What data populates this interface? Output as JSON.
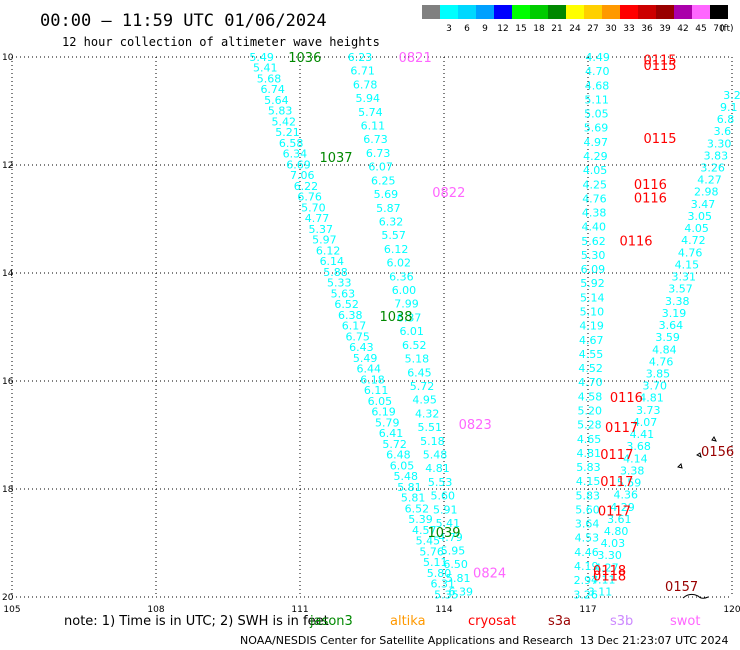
{
  "header": {
    "title": "00:00 – 11:59 UTC 01/06/2024",
    "subtitle": "12 hour collection of altimeter wave heights"
  },
  "colorbar": {
    "unit": "(ft)",
    "bins": [
      {
        "label": "",
        "color": "#808080"
      },
      {
        "label": "3",
        "color": "#00ffff"
      },
      {
        "label": "6",
        "color": "#00d8ff"
      },
      {
        "label": "9",
        "color": "#00a0ff"
      },
      {
        "label": "12",
        "color": "#0000ff"
      },
      {
        "label": "15",
        "color": "#00ff00"
      },
      {
        "label": "18",
        "color": "#00cc00"
      },
      {
        "label": "21",
        "color": "#008800"
      },
      {
        "label": "24",
        "color": "#ffff00"
      },
      {
        "label": "27",
        "color": "#ffd000"
      },
      {
        "label": "30",
        "color": "#ff9900"
      },
      {
        "label": "33",
        "color": "#ff0000"
      },
      {
        "label": "36",
        "color": "#cc0000"
      },
      {
        "label": "39",
        "color": "#990000"
      },
      {
        "label": "42",
        "color": "#aa00aa"
      },
      {
        "label": "45",
        "color": "#ff66ff"
      },
      {
        "label": "70",
        "color": "#000000"
      }
    ]
  },
  "footer": {
    "note": "note: 1) Time is in UTC; 2) SWH is in feet",
    "credit": "NOAA/NESDIS Center for Satellite Applications and Research",
    "timestamp": "13 Dec 21:23:07 UTC 2024"
  },
  "satellites": [
    {
      "name": "jason3",
      "color": "#008800"
    },
    {
      "name": "altika",
      "color": "#ff9900"
    },
    {
      "name": "cryosat",
      "color": "#ff0000"
    },
    {
      "name": "s3a",
      "color": "#990000"
    },
    {
      "name": "s3b",
      "color": "#cc88ff"
    },
    {
      "name": "swot",
      "color": "#ff66ff"
    }
  ],
  "chart_data": {
    "type": "scatter",
    "title": "00:00 – 11:59 UTC 01/06/2024",
    "subtitle": "12 hour collection of altimeter wave heights",
    "x_ticks": [
      105,
      108,
      111,
      114,
      117,
      120
    ],
    "y_ticks": [
      -10,
      -12,
      -14,
      -16,
      -18,
      -20
    ],
    "y_tick_labels": [
      "10",
      "12",
      "14",
      "16",
      "18",
      "20"
    ],
    "xlim": [
      105,
      120
    ],
    "ylim": [
      -20,
      -10
    ],
    "grid": true,
    "value_color": "#00ffff",
    "tracks": [
      {
        "name": "track-a",
        "x_start": 110.2,
        "x_end": 114.05,
        "y_start": -10.0,
        "y_end": -19.95,
        "values": [
          "5.49",
          "5.41",
          "5.68",
          "6.74",
          "5.64",
          "5.83",
          "5.42",
          "5.21",
          "6.58",
          "6.34",
          "6.69",
          "7.06",
          "6.22",
          "6.76",
          "5.70",
          "4.77",
          "5.37",
          "5.97",
          "6.12",
          "6.14",
          "5.88",
          "5.33",
          "5.63",
          "6.52",
          "6.38",
          "6.17",
          "6.75",
          "6.43",
          "5.49",
          "6.44",
          "6.18",
          "6.11",
          "6.05",
          "6.19",
          "5.79",
          "6.41",
          "5.72",
          "6.48",
          "6.05",
          "5.48",
          "5.81",
          "5.81",
          "6.52",
          "5.39",
          "4.57",
          "5.45",
          "5.76",
          "5.11",
          "5.80",
          "6.31",
          "5.35"
        ]
      },
      {
        "name": "track-b",
        "x_start": 112.25,
        "x_end": 114.35,
        "y_start": -10.0,
        "y_end": -19.9,
        "values": [
          "6.23",
          "6.71",
          "6.78",
          "5.94",
          "5.74",
          "6.11",
          "6.73",
          "6.73",
          "6.07",
          "6.25",
          "5.69",
          "5.87",
          "6.32",
          "5.57",
          "6.12",
          "6.02",
          "6.36",
          "6.00",
          "7.99",
          "6.37",
          "6.01",
          "6.52",
          "5.18",
          "6.45",
          "5.72",
          "4.95",
          "4.32",
          "5.51",
          "5.18",
          "5.48",
          "4.81",
          "5.53",
          "5.60",
          "5.91",
          "5.41",
          "4.79",
          "5.95",
          "6.50",
          "5.81",
          "6.39"
        ]
      },
      {
        "name": "track-c",
        "x_start": 117.2,
        "x_end": 116.95,
        "y_start": -10.0,
        "y_end": -19.95,
        "values": [
          "4.49",
          "4.70",
          "4.68",
          "5.11",
          "5.05",
          "5.69",
          "4.97",
          "4.29",
          "4.05",
          "4.25",
          "4.76",
          "4.38",
          "4.40",
          "5.62",
          "5.30",
          "6.09",
          "5.92",
          "5.14",
          "5.10",
          "4.19",
          "4.67",
          "4.55",
          "4.52",
          "4.70",
          "4.58",
          "5.20",
          "5.28",
          "4.65",
          "4.81",
          "5.83",
          "4.15",
          "5.83",
          "5.60",
          "3.64",
          "4.53",
          "4.46",
          "4.19",
          "2.97",
          "3.26"
        ]
      },
      {
        "name": "track-d",
        "x_start": 117.25,
        "x_end": 120.0,
        "y_start": -19.9,
        "y_end": -10.7,
        "values": [
          "3.11",
          "4.11",
          "4.27",
          "3.30",
          "4.03",
          "4.80",
          "3.61",
          "4.29",
          "4.36",
          "5.59",
          "3.38",
          "4.14",
          "3.68",
          "4.41",
          "4.07",
          "3.73",
          "4.81",
          "3.70",
          "3.85",
          "4.76",
          "4.84",
          "3.59",
          "3.64",
          "3.19",
          "3.38",
          "3.57",
          "3.31",
          "4.15",
          "4.76",
          "4.72",
          "4.05",
          "3.05",
          "3.47",
          "2.98",
          "4.27",
          "3.26",
          "3.83",
          "3.30",
          "3.6",
          "6.8",
          "9.1",
          "3.2"
        ]
      }
    ],
    "time_labels": [
      {
        "text": "1036",
        "x": 111.1,
        "y": -10.0,
        "color": "#008800"
      },
      {
        "text": "0821",
        "x": 113.4,
        "y": -10.0,
        "color": "#ff66ff"
      },
      {
        "text": "0115",
        "x": 118.5,
        "y": -10.05,
        "color": "#ff0000"
      },
      {
        "text": "0115",
        "x": 118.5,
        "y": -10.15,
        "color": "#ff0000"
      },
      {
        "text": "1037",
        "x": 111.75,
        "y": -11.85,
        "color": "#008800"
      },
      {
        "text": "0115",
        "x": 118.5,
        "y": -11.5,
        "color": "#ff0000"
      },
      {
        "text": "0822",
        "x": 114.1,
        "y": -12.5,
        "color": "#ff66ff"
      },
      {
        "text": "0116",
        "x": 118.3,
        "y": -12.35,
        "color": "#ff0000"
      },
      {
        "text": "0116",
        "x": 118.3,
        "y": -12.6,
        "color": "#ff0000"
      },
      {
        "text": "0116",
        "x": 118.0,
        "y": -13.4,
        "color": "#ff0000"
      },
      {
        "text": "1038",
        "x": 113.0,
        "y": -14.8,
        "color": "#008800"
      },
      {
        "text": "0116",
        "x": 117.8,
        "y": -16.3,
        "color": "#ff0000"
      },
      {
        "text": "0823",
        "x": 114.65,
        "y": -16.8,
        "color": "#ff66ff"
      },
      {
        "text": "0117",
        "x": 117.7,
        "y": -16.85,
        "color": "#ff0000"
      },
      {
        "text": "0117",
        "x": 117.6,
        "y": -17.35,
        "color": "#ff0000"
      },
      {
        "text": "0117",
        "x": 117.6,
        "y": -17.85,
        "color": "#ff0000"
      },
      {
        "text": "0117",
        "x": 117.55,
        "y": -18.4,
        "color": "#ff0000"
      },
      {
        "text": "0156",
        "x": 119.7,
        "y": -17.3,
        "color": "#990000"
      },
      {
        "text": "1039",
        "x": 114.0,
        "y": -18.8,
        "color": "#008800"
      },
      {
        "text": "0824",
        "x": 114.95,
        "y": -19.55,
        "color": "#ff66ff"
      },
      {
        "text": "0118",
        "x": 117.45,
        "y": -19.5,
        "color": "#ff0000"
      },
      {
        "text": "0118",
        "x": 117.45,
        "y": -19.6,
        "color": "#ff0000"
      },
      {
        "text": "0157",
        "x": 118.95,
        "y": -19.8,
        "color": "#990000"
      }
    ]
  }
}
